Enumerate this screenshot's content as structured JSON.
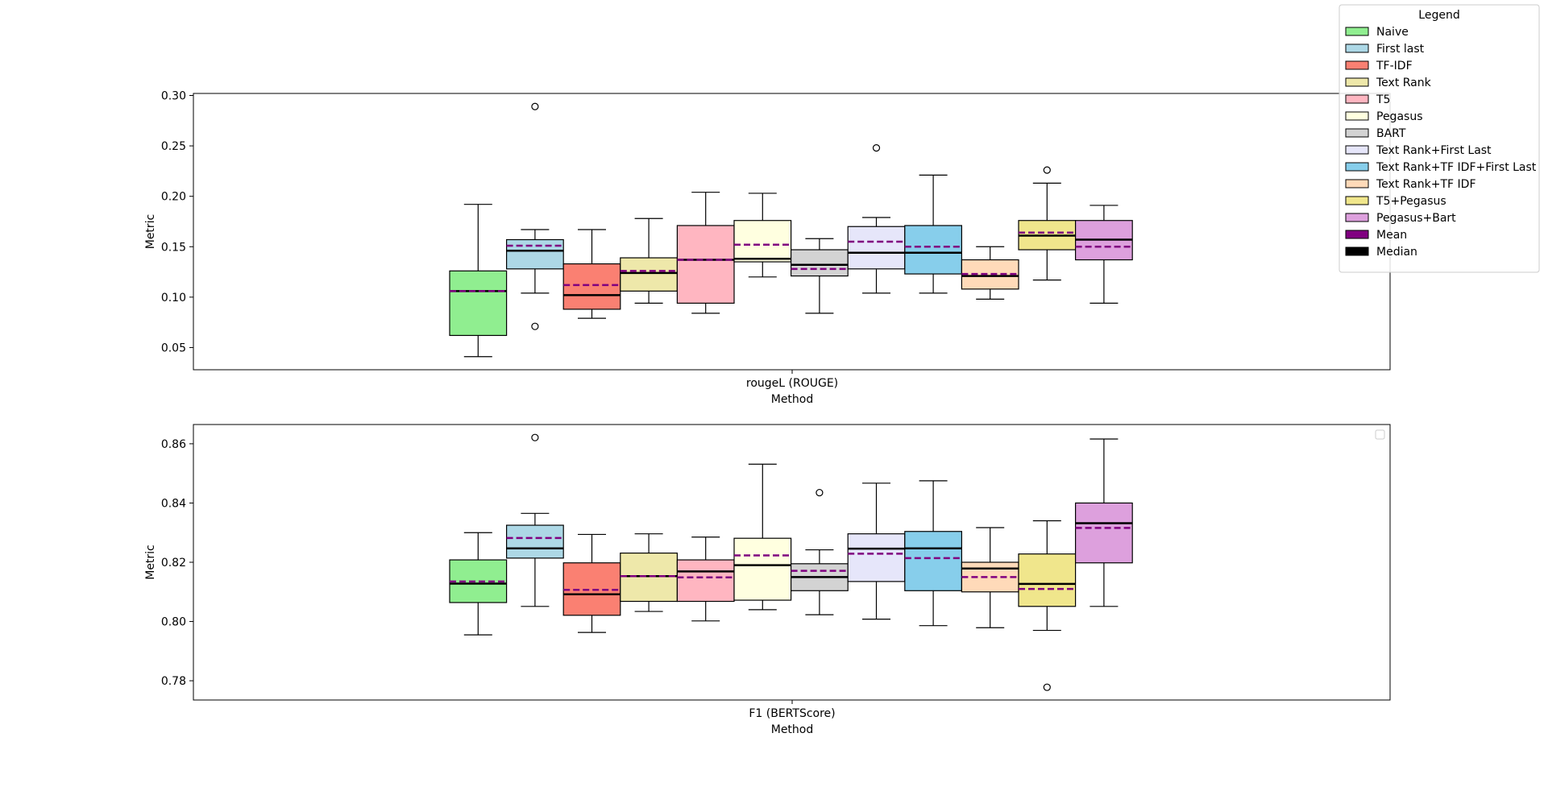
{
  "legend": {
    "title": "Legend",
    "entries": [
      {
        "label": "Naive",
        "color": "#90EE90"
      },
      {
        "label": "First last",
        "color": "#ADD8E6"
      },
      {
        "label": "TF-IDF",
        "color": "#FA8072"
      },
      {
        "label": "Text Rank",
        "color": "#EEE8AA"
      },
      {
        "label": "T5",
        "color": "#FFB6C1"
      },
      {
        "label": "Pegasus",
        "color": "#FFFFE0"
      },
      {
        "label": "BART",
        "color": "#D3D3D3"
      },
      {
        "label": "Text Rank+First Last",
        "color": "#E6E6FA"
      },
      {
        "label": "Text Rank+TF IDF+First Last",
        "color": "#87CEEB"
      },
      {
        "label": "Text Rank+TF IDF",
        "color": "#FFDAB9"
      },
      {
        "label": "T5+Pegasus",
        "color": "#F0E68C"
      },
      {
        "label": "Pegasus+Bart",
        "color": "#DDA0DD"
      },
      {
        "label": "Mean",
        "color": "#800080"
      },
      {
        "label": "Median",
        "color": "#000000"
      }
    ]
  },
  "chart_data": [
    {
      "type": "box",
      "category_label": "rougeL (ROUGE)",
      "xlabel": "Method",
      "ylabel": "Metric",
      "ylim": [
        0.028,
        0.302
      ],
      "yticks": [
        "0.05",
        "0.10",
        "0.15",
        "0.20",
        "0.25",
        "0.30"
      ],
      "mean_line_color": "#800080",
      "median_line_color": "#000000",
      "boxes": [
        {
          "method": "Naive",
          "whisker_low": 0.041,
          "q1": 0.062,
          "median": 0.106,
          "q3": 0.126,
          "whisker_high": 0.192,
          "mean": 0.106,
          "outliers": []
        },
        {
          "method": "First last",
          "whisker_low": 0.104,
          "q1": 0.128,
          "median": 0.146,
          "q3": 0.157,
          "whisker_high": 0.167,
          "mean": 0.151,
          "outliers": [
            0.289,
            0.071
          ]
        },
        {
          "method": "TF-IDF",
          "whisker_low": 0.079,
          "q1": 0.088,
          "median": 0.102,
          "q3": 0.133,
          "whisker_high": 0.167,
          "mean": 0.112,
          "outliers": []
        },
        {
          "method": "Text Rank",
          "whisker_low": 0.094,
          "q1": 0.106,
          "median": 0.124,
          "q3": 0.139,
          "whisker_high": 0.178,
          "mean": 0.126,
          "outliers": []
        },
        {
          "method": "T5",
          "whisker_low": 0.084,
          "q1": 0.094,
          "median": 0.137,
          "q3": 0.171,
          "whisker_high": 0.204,
          "mean": 0.137,
          "outliers": []
        },
        {
          "method": "Pegasus",
          "whisker_low": 0.12,
          "q1": 0.135,
          "median": 0.138,
          "q3": 0.176,
          "whisker_high": 0.203,
          "mean": 0.152,
          "outliers": []
        },
        {
          "method": "BART",
          "whisker_low": 0.084,
          "q1": 0.121,
          "median": 0.132,
          "q3": 0.147,
          "whisker_high": 0.158,
          "mean": 0.128,
          "outliers": []
        },
        {
          "method": "Text Rank+First Last",
          "whisker_low": 0.104,
          "q1": 0.128,
          "median": 0.144,
          "q3": 0.17,
          "whisker_high": 0.179,
          "mean": 0.155,
          "outliers": [
            0.248
          ]
        },
        {
          "method": "Text Rank+TF IDF+First Last",
          "whisker_low": 0.104,
          "q1": 0.123,
          "median": 0.144,
          "q3": 0.171,
          "whisker_high": 0.221,
          "mean": 0.15,
          "outliers": []
        },
        {
          "method": "Text Rank+TF IDF",
          "whisker_low": 0.098,
          "q1": 0.108,
          "median": 0.121,
          "q3": 0.137,
          "whisker_high": 0.15,
          "mean": 0.123,
          "outliers": []
        },
        {
          "method": "T5+Pegasus",
          "whisker_low": 0.117,
          "q1": 0.147,
          "median": 0.161,
          "q3": 0.176,
          "whisker_high": 0.213,
          "mean": 0.164,
          "outliers": [
            0.226
          ]
        },
        {
          "method": "Pegasus+Bart",
          "whisker_low": 0.094,
          "q1": 0.137,
          "median": 0.157,
          "q3": 0.176,
          "whisker_high": 0.191,
          "mean": 0.15,
          "outliers": []
        }
      ]
    },
    {
      "type": "box",
      "category_label": "F1 (BERTScore)",
      "xlabel": "Method",
      "ylabel": "Metric",
      "ylim": [
        0.7735,
        0.8665
      ],
      "yticks": [
        "0.78",
        "0.80",
        "0.82",
        "0.84",
        "0.86"
      ],
      "mean_line_color": "#800080",
      "median_line_color": "#000000",
      "boxes": [
        {
          "method": "Naive",
          "whisker_low": 0.7955,
          "q1": 0.8064,
          "median": 0.8128,
          "q3": 0.8208,
          "whisker_high": 0.83,
          "mean": 0.8135,
          "outliers": []
        },
        {
          "method": "First last",
          "whisker_low": 0.8051,
          "q1": 0.8214,
          "median": 0.8247,
          "q3": 0.8325,
          "whisker_high": 0.8365,
          "mean": 0.8282,
          "outliers": [
            0.8621
          ]
        },
        {
          "method": "TF-IDF",
          "whisker_low": 0.7963,
          "q1": 0.8021,
          "median": 0.8092,
          "q3": 0.8198,
          "whisker_high": 0.8294,
          "mean": 0.8107,
          "outliers": []
        },
        {
          "method": "Text Rank",
          "whisker_low": 0.8034,
          "q1": 0.8068,
          "median": 0.8153,
          "q3": 0.8231,
          "whisker_high": 0.8296,
          "mean": 0.8153,
          "outliers": []
        },
        {
          "method": "T5",
          "whisker_low": 0.8002,
          "q1": 0.8068,
          "median": 0.8169,
          "q3": 0.8208,
          "whisker_high": 0.8285,
          "mean": 0.8149,
          "outliers": []
        },
        {
          "method": "Pegasus",
          "whisker_low": 0.804,
          "q1": 0.8072,
          "median": 0.819,
          "q3": 0.8281,
          "whisker_high": 0.8531,
          "mean": 0.8223,
          "outliers": []
        },
        {
          "method": "BART",
          "whisker_low": 0.8023,
          "q1": 0.8104,
          "median": 0.815,
          "q3": 0.8195,
          "whisker_high": 0.8242,
          "mean": 0.8171,
          "outliers": [
            0.8435
          ]
        },
        {
          "method": "Text Rank+First Last",
          "whisker_low": 0.8008,
          "q1": 0.8135,
          "median": 0.8246,
          "q3": 0.8296,
          "whisker_high": 0.8467,
          "mean": 0.8229,
          "outliers": []
        },
        {
          "method": "Text Rank+TF IDF+First Last",
          "whisker_low": 0.7986,
          "q1": 0.8104,
          "median": 0.8247,
          "q3": 0.8304,
          "whisker_high": 0.8475,
          "mean": 0.8214,
          "outliers": []
        },
        {
          "method": "Text Rank+TF IDF",
          "whisker_low": 0.7979,
          "q1": 0.81,
          "median": 0.8179,
          "q3": 0.82,
          "whisker_high": 0.8317,
          "mean": 0.815,
          "outliers": []
        },
        {
          "method": "T5+Pegasus",
          "whisker_low": 0.797,
          "q1": 0.8051,
          "median": 0.8127,
          "q3": 0.8228,
          "whisker_high": 0.834,
          "mean": 0.811,
          "outliers": [
            0.7778
          ]
        },
        {
          "method": "Pegasus+Bart",
          "whisker_low": 0.8051,
          "q1": 0.8198,
          "median": 0.8332,
          "q3": 0.84,
          "whisker_high": 0.8616,
          "mean": 0.8316,
          "outliers": []
        }
      ]
    }
  ]
}
